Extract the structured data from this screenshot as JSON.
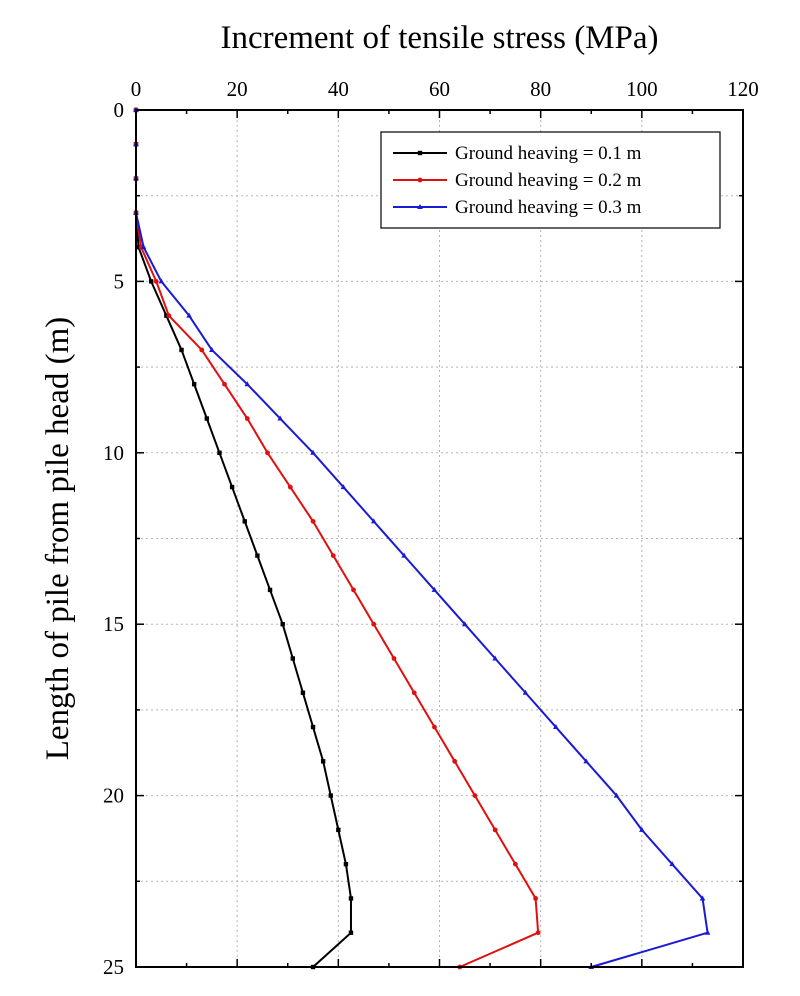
{
  "chart_data": {
    "type": "line",
    "xlabel": "Increment of tensile stress (MPa)",
    "ylabel": "Length of pile from pile head (m)",
    "xlim": [
      0,
      120
    ],
    "ylim": [
      0,
      25
    ],
    "y_inverted": true,
    "x_axis_position": "top",
    "xticks": [
      0,
      20,
      40,
      60,
      80,
      100,
      120
    ],
    "yticks": [
      0,
      5,
      10,
      15,
      20,
      25
    ],
    "x_tick_labels": [
      "0",
      "20",
      "40",
      "60",
      "80",
      "100",
      "120"
    ],
    "y_tick_labels": [
      "0",
      "5",
      "10",
      "15",
      "20",
      "25"
    ],
    "grid": true,
    "legend_position": "top-right",
    "series": [
      {
        "name": "Ground heaving = 0.1 m",
        "color": "#000000",
        "marker": "square",
        "points": [
          [
            0,
            0
          ],
          [
            0,
            1
          ],
          [
            0,
            2
          ],
          [
            0,
            3
          ],
          [
            0.5,
            4
          ],
          [
            3,
            5
          ],
          [
            6,
            6
          ],
          [
            9,
            7
          ],
          [
            11.5,
            8
          ],
          [
            14,
            9
          ],
          [
            16.5,
            10
          ],
          [
            19,
            11
          ],
          [
            21.5,
            12
          ],
          [
            24,
            13
          ],
          [
            26.5,
            14
          ],
          [
            29,
            15
          ],
          [
            31,
            16
          ],
          [
            33,
            17
          ],
          [
            35,
            18
          ],
          [
            37,
            19
          ],
          [
            38.5,
            20
          ],
          [
            40,
            21
          ],
          [
            41.5,
            22
          ],
          [
            42.5,
            23
          ],
          [
            42.5,
            24
          ],
          [
            35,
            25
          ]
        ]
      },
      {
        "name": "Ground heaving = 0.2 m",
        "color": "#e01010",
        "marker": "circle",
        "points": [
          [
            0,
            0
          ],
          [
            0,
            1
          ],
          [
            0,
            2
          ],
          [
            0,
            3
          ],
          [
            1,
            4
          ],
          [
            4,
            5
          ],
          [
            6.5,
            6
          ],
          [
            13,
            7
          ],
          [
            17.5,
            8
          ],
          [
            22,
            9
          ],
          [
            26,
            10
          ],
          [
            30.5,
            11
          ],
          [
            35,
            12
          ],
          [
            39,
            13
          ],
          [
            43,
            14
          ],
          [
            47,
            15
          ],
          [
            51,
            16
          ],
          [
            55,
            17
          ],
          [
            59,
            18
          ],
          [
            63,
            19
          ],
          [
            67,
            20
          ],
          [
            71,
            21
          ],
          [
            75,
            22
          ],
          [
            79,
            23
          ],
          [
            79.5,
            24
          ],
          [
            64,
            25
          ]
        ]
      },
      {
        "name": "Ground heaving = 0.3 m",
        "color": "#1a1ad6",
        "marker": "triangle",
        "points": [
          [
            0,
            0
          ],
          [
            0,
            1
          ],
          [
            0,
            2
          ],
          [
            0,
            3
          ],
          [
            1.5,
            4
          ],
          [
            5,
            5
          ],
          [
            10.5,
            6
          ],
          [
            15,
            7
          ],
          [
            22,
            8
          ],
          [
            28.5,
            9
          ],
          [
            35,
            10
          ],
          [
            41,
            11
          ],
          [
            47,
            12
          ],
          [
            53,
            13
          ],
          [
            59,
            14
          ],
          [
            65,
            15
          ],
          [
            71,
            16
          ],
          [
            77,
            17
          ],
          [
            83,
            18
          ],
          [
            89,
            19
          ],
          [
            95,
            20
          ],
          [
            100,
            21
          ],
          [
            106,
            22
          ],
          [
            112,
            23
          ],
          [
            113,
            24
          ],
          [
            90,
            25
          ]
        ]
      }
    ]
  }
}
